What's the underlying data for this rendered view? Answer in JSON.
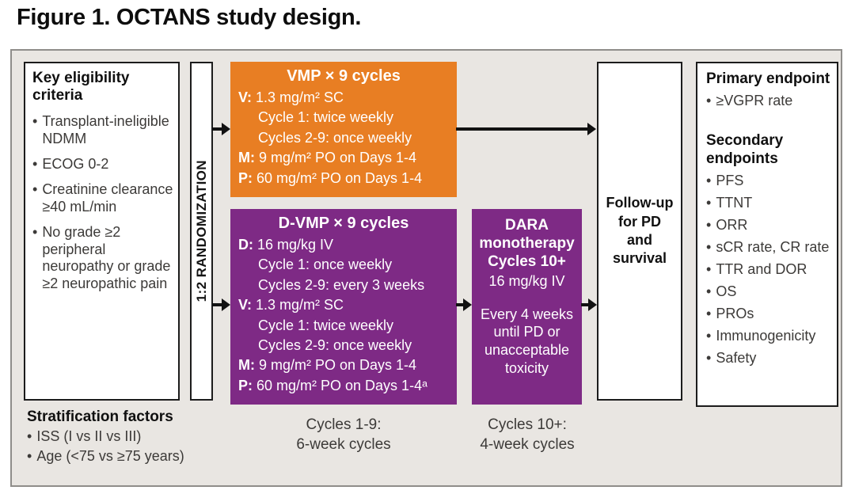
{
  "title": "Figure 1. OCTANS study design.",
  "colors": {
    "orange": "#E87E23",
    "purple": "#7E2A85",
    "frame_bg": "#E9E6E2"
  },
  "eligibility": {
    "heading": "Key eligibility criteria",
    "bullets": [
      "Transplant-ineligible NDMM",
      "ECOG 0-2",
      "Creatinine clearance ≥40 mL/min",
      "No grade ≥2 peripheral neuropathy or grade ≥2 neuropathic pain"
    ]
  },
  "randomization": {
    "label": "1:2 RANDOMIZATION"
  },
  "vmp_box": {
    "title": "VMP × 9 cycles",
    "lines": [
      {
        "prefix": "V:",
        "text": "1.3 mg/m² SC"
      },
      {
        "prefix": "",
        "text": "Cycle 1: twice weekly"
      },
      {
        "prefix": "",
        "text": "Cycles 2-9: once weekly"
      },
      {
        "prefix": "M:",
        "text": "9 mg/m² PO on Days 1-4"
      },
      {
        "prefix": "P:",
        "text": "60 mg/m² PO on Days 1-4"
      }
    ]
  },
  "dvmp_box": {
    "title": "D-VMP × 9 cycles",
    "lines": [
      {
        "prefix": "D:",
        "text": "16 mg/kg IV"
      },
      {
        "prefix": "",
        "text": "Cycle 1: once weekly"
      },
      {
        "prefix": "",
        "text": "Cycles 2-9: every 3 weeks"
      },
      {
        "prefix": "V:",
        "text": "1.3 mg/m² SC"
      },
      {
        "prefix": "",
        "text": "Cycle 1: twice weekly"
      },
      {
        "prefix": "",
        "text": "Cycles 2-9: once weekly"
      },
      {
        "prefix": "M:",
        "text": "9 mg/m² PO on Days 1-4"
      },
      {
        "prefix": "P:",
        "text": "60 mg/m² PO on Days 1-4ᵃ"
      }
    ]
  },
  "dara_box": {
    "title": "DARA monotherapy Cycles 10+",
    "dose": "16 mg/kg IV",
    "schedule": "Every 4 weeks until PD or unacceptable toxicity"
  },
  "followup_box": {
    "label": "Follow-up for PD and survival"
  },
  "endpoints": {
    "primary_heading": "Primary endpoint",
    "primary_bullets": [
      "≥VGPR rate"
    ],
    "secondary_heading": "Secondary endpoints",
    "secondary_bullets": [
      "PFS",
      "TTNT",
      "ORR",
      "sCR rate, CR rate",
      "TTR and DOR",
      "OS",
      "PROs",
      "Immunogenicity",
      "Safety"
    ]
  },
  "stratification": {
    "heading": "Stratification factors",
    "bullets": [
      "ISS (I vs II vs III)",
      "Age (<75 vs ≥75 years)"
    ]
  },
  "cycle_labels": {
    "c19_line1": "Cycles 1-9:",
    "c19_line2": "6-week cycles",
    "c10_line1": "Cycles 10+:",
    "c10_line2": "4-week cycles"
  }
}
